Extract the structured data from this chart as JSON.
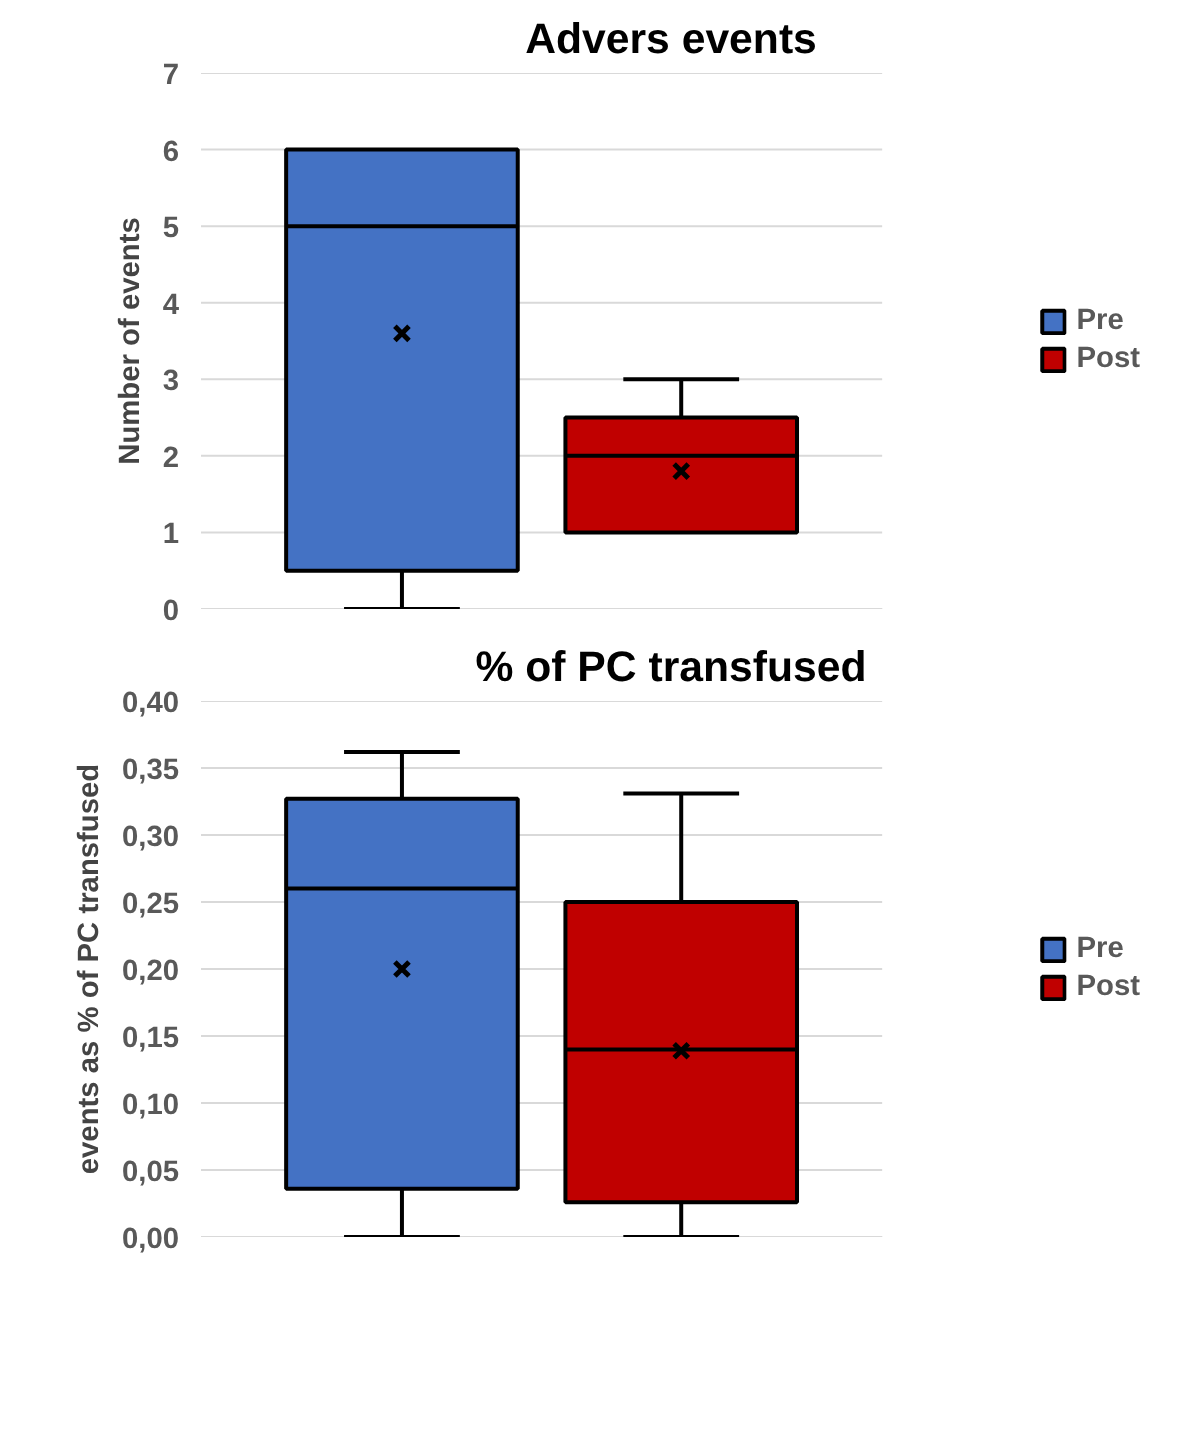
{
  "chart_data": [
    {
      "type": "box",
      "title": "Advers events",
      "ylabel": "Number of events",
      "categories": [
        null
      ],
      "ylim": [
        0,
        7
      ],
      "yticks": [
        0,
        1,
        2,
        3,
        4,
        5,
        6,
        7
      ],
      "grid": "y",
      "legend": "right",
      "series": [
        {
          "name": "Pre",
          "color": "#4472c4",
          "boxes": [
            {
              "low": 0,
              "q1": 0.5,
              "median": 5,
              "q3": 6,
              "high": 6,
              "mean": 3.6
            }
          ]
        },
        {
          "name": "Post",
          "color": "#c00000",
          "boxes": [
            {
              "low": 1,
              "q1": 1,
              "median": 2,
              "q3": 2.5,
              "high": 3,
              "mean": 1.8
            }
          ]
        }
      ]
    },
    {
      "type": "box",
      "title": "% of PC transfused",
      "ylabel": "events as % of PC transfused",
      "categories": [
        null
      ],
      "ylim": [
        0,
        0.4
      ],
      "yticks": [
        {
          "value": 0,
          "label": "0,00"
        },
        {
          "value": 0.05,
          "label": "0,05"
        },
        {
          "value": 0.1,
          "label": "0,10"
        },
        {
          "value": 0.15,
          "label": "0,15"
        },
        {
          "value": 0.2,
          "label": "0,20"
        },
        {
          "value": 0.25,
          "label": "0,25"
        },
        {
          "value": 0.3,
          "label": "0,30"
        },
        {
          "value": 0.35,
          "label": "0,35"
        },
        {
          "value": 0.4,
          "label": "0,40"
        }
      ],
      "grid": "y",
      "legend": "right",
      "series": [
        {
          "name": "Pre",
          "color": "#4472c4",
          "boxes": [
            {
              "low": 0,
              "q1": 0.036,
              "median": 0.26,
              "q3": 0.327,
              "high": 0.362,
              "mean": 0.2
            }
          ]
        },
        {
          "name": "Post",
          "color": "#c00000",
          "boxes": [
            {
              "low": 0,
              "q1": 0.026,
              "median": 0.14,
              "q3": 0.25,
              "high": 0.331,
              "mean": 0.139
            }
          ]
        }
      ]
    }
  ]
}
